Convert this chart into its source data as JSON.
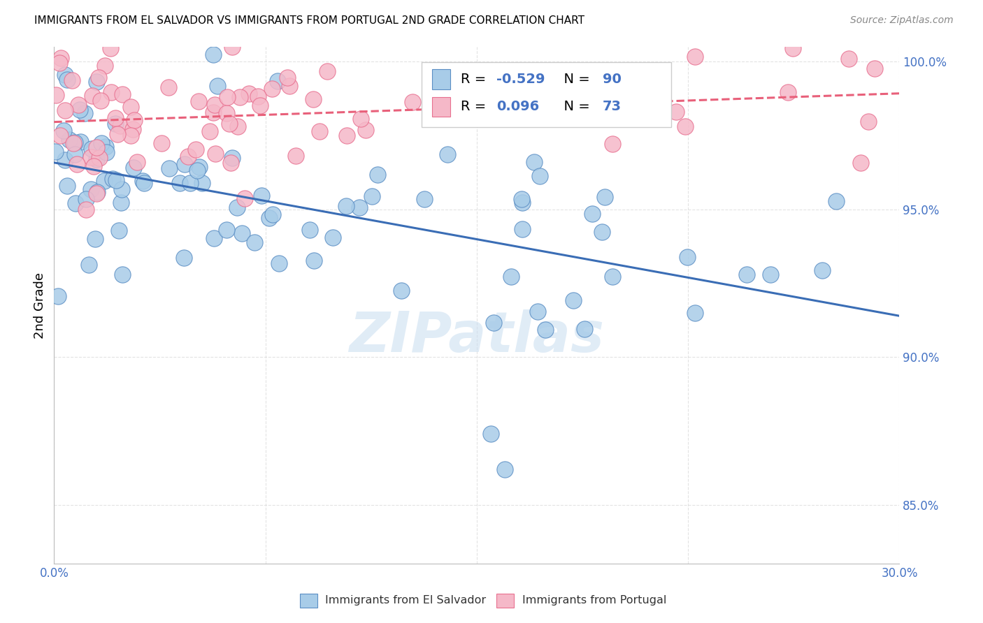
{
  "title": "IMMIGRANTS FROM EL SALVADOR VS IMMIGRANTS FROM PORTUGAL 2ND GRADE CORRELATION CHART",
  "source": "Source: ZipAtlas.com",
  "ylabel": "2nd Grade",
  "xlim": [
    0.0,
    0.3
  ],
  "ylim": [
    0.83,
    1.005
  ],
  "yticks": [
    0.85,
    0.9,
    0.95,
    1.0
  ],
  "ytick_labels": [
    "85.0%",
    "90.0%",
    "95.0%",
    "100.0%"
  ],
  "xtick_positions": [
    0.0,
    0.075,
    0.15,
    0.225,
    0.3
  ],
  "xtick_labels": [
    "0.0%",
    "",
    "",
    "",
    "30.0%"
  ],
  "blue_R": "-0.529",
  "blue_N": "90",
  "pink_R": "0.096",
  "pink_N": "73",
  "blue_color": "#A8CCE8",
  "pink_color": "#F5B8C8",
  "blue_edge_color": "#5B8EC4",
  "pink_edge_color": "#E87090",
  "blue_line_color": "#3A6DB5",
  "pink_line_color": "#E8607A",
  "legend_blue_label": "Immigrants from El Salvador",
  "legend_pink_label": "Immigrants from Portugal",
  "watermark": "ZIPatlas",
  "tick_color": "#4472C4",
  "grid_color": "#DDDDDD",
  "title_fontsize": 11,
  "tick_fontsize": 12,
  "scatter_size": 280
}
